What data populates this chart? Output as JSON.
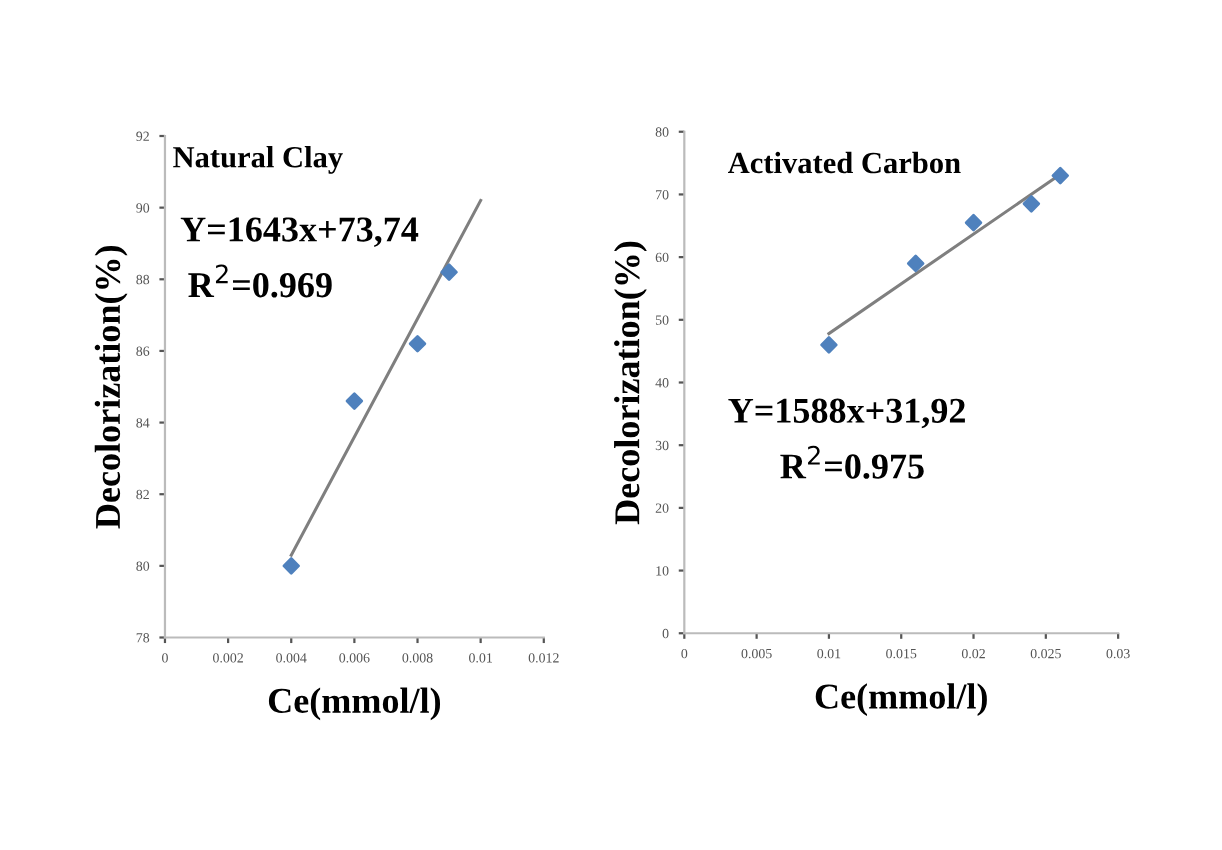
{
  "chart_data": [
    {
      "type": "scatter",
      "title": "Natural Clay",
      "xlabel": "Ce(mmol/l)",
      "ylabel": "Decolorization(%)",
      "annotations": [
        "Y=1643x+73,74",
        "R$^{2}$=0.969"
      ],
      "series": [
        {
          "color": "#4f81bd",
          "marker": "diamond",
          "x": [
            0.004,
            0.006,
            0.008,
            0.009
          ],
          "values": [
            80,
            84.6,
            86.2,
            88.2
          ]
        },
        {
          "type": "line",
          "color": "#7f7f7f",
          "marker": "none",
          "x": [
            0.004,
            0.01
          ],
          "values": [
            80.3,
            90.2
          ]
        }
      ],
      "xlim": [
        0,
        0.012
      ],
      "xticks": [
        0,
        0.002,
        0.004,
        0.006,
        0.008,
        0.01,
        0.012
      ],
      "ylim": [
        78,
        92
      ],
      "yticks": [
        78,
        80,
        82,
        84,
        86,
        88,
        90,
        92
      ],
      "grid": false
    },
    {
      "type": "scatter",
      "title": "Activated Carbon",
      "xlabel": "Ce(mmol/l)",
      "ylabel": "Decolorization(%)",
      "annotations": [
        "Y=1588x+31,92",
        "R$^{2}$=0.975"
      ],
      "series": [
        {
          "color": "#4f81bd",
          "marker": "diamond",
          "x": [
            0.01,
            0.016,
            0.02,
            0.024,
            0.026
          ],
          "values": [
            46,
            59,
            65.5,
            68.5,
            73
          ]
        },
        {
          "type": "line",
          "color": "#7f7f7f",
          "marker": "none",
          "x": [
            0.01,
            0.026
          ],
          "values": [
            47.8,
            73.2
          ]
        }
      ],
      "xlim": [
        0,
        0.03
      ],
      "xticks": [
        0,
        0.005,
        0.01,
        0.015,
        0.02,
        0.025,
        0.03
      ],
      "ylim": [
        0,
        80
      ],
      "yticks": [
        0,
        10,
        20,
        30,
        40,
        50,
        60,
        70,
        80
      ],
      "grid": false
    }
  ]
}
